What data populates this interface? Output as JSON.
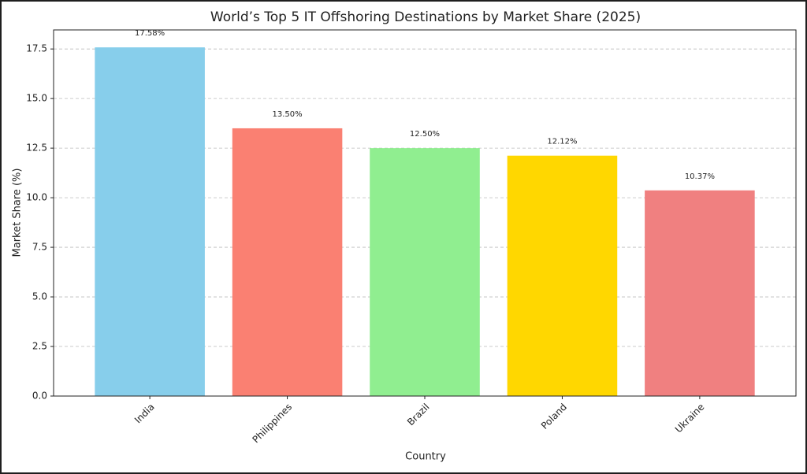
{
  "chart_data": {
    "type": "bar",
    "title": "World’s Top 5 IT Offshoring Destinations by Market Share (2025)",
    "x_label": "Country",
    "y_label": "Market Share (%)",
    "categories": [
      "India",
      "Philippines",
      "Brazil",
      "Poland",
      "Ukraine"
    ],
    "values": [
      17.58,
      13.5,
      12.5,
      12.12,
      10.37
    ],
    "value_labels": [
      "17.58%",
      "13.50%",
      "12.50%",
      "12.12%",
      "10.37%"
    ],
    "colors": [
      "#87CEEB",
      "#FA8072",
      "#90EE90",
      "#FFD700",
      "#F08080"
    ],
    "ylim": [
      0,
      18.46
    ],
    "yticks": [
      {
        "value": 0,
        "label": "0.0"
      },
      2.5,
      {
        "value": 5,
        "label": "5.0"
      },
      7.5,
      {
        "value": 10,
        "label": "10.0"
      },
      12.5,
      {
        "value": 15,
        "label": "15.0"
      },
      17.5
    ],
    "grid": true
  }
}
